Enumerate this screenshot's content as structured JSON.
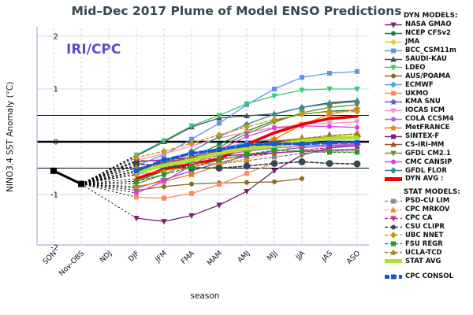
{
  "title": "Mid–Dec 2017 Plume of Model ENSO Predictions",
  "watermark": "IRI/CPC",
  "axes": {
    "y_label": "NINO3.4 SST Anomaly (°C)",
    "x_label": "season",
    "y_ticks": [
      "2",
      "1",
      "0",
      "-1",
      "-2"
    ],
    "y_tick_values": [
      2,
      1,
      0,
      -1,
      -2
    ]
  },
  "legend": {
    "dyn_header": "DYN MODELS:",
    "stat_header": "STAT MODELS:"
  },
  "colors": {
    "title_text": "#37474f",
    "watermark_text": "#5a51c8",
    "frame": "#a9b2d8",
    "gridline": "#d9d9d9",
    "season_gridline": "#cfcfcf",
    "reference_line": "#000000",
    "observation": "#000000"
  },
  "chart_data": {
    "type": "line",
    "title": "Mid–Dec 2017 Plume of Model ENSO Predictions",
    "xlabel": "season",
    "ylabel": "NINO3.4 SST Anomaly (°C)",
    "ylim": [
      -2,
      2
    ],
    "x_categories": [
      "SON",
      "Nov-OBS",
      "NDJ",
      "DJF",
      "JFM",
      "FMA",
      "MAM",
      "AMJ",
      "MJJ",
      "JJA",
      "JAS",
      "ASO"
    ],
    "reference_lines": [
      0.5,
      0,
      -0.5
    ],
    "light_gridline_values": [
      2,
      1,
      -1
    ],
    "observed": {
      "name": "OBS",
      "x": [
        "SON",
        "Nov-OBS"
      ],
      "values": [
        -0.55,
        -0.8
      ]
    },
    "forecast_start_category": "DJF",
    "series": [
      {
        "name": "NASA GMAO",
        "group": "dyn",
        "color": "#77226f",
        "marker": "tri-down",
        "line": "solid",
        "thick": false,
        "values": [
          -1.45,
          -1.51,
          -1.4,
          -1.2,
          -0.94,
          -0.55,
          -0.25,
          -0.12,
          -0.07
        ]
      },
      {
        "name": "NCEP CFSv2",
        "group": "dyn",
        "color": "#1d7a4a",
        "marker": "circle",
        "line": "solid",
        "thick": false,
        "values": [
          -0.75,
          -0.55,
          -0.3,
          -0.05,
          0.2,
          0.4,
          0.52,
          0.58,
          0.6
        ]
      },
      {
        "name": "JMA",
        "group": "dyn",
        "color": "#f0c930",
        "marker": "diamond",
        "line": "solid",
        "thick": false,
        "values": [
          -0.55,
          -0.45,
          -0.32,
          -0.18,
          -0.08,
          -0.02,
          0.04,
          null,
          null
        ]
      },
      {
        "name": "BCC_CSM11m",
        "group": "dyn",
        "color": "#5f93ea",
        "marker": "square",
        "line": "solid",
        "thick": false,
        "values": [
          -0.45,
          -0.25,
          0.05,
          0.35,
          0.7,
          1.0,
          1.22,
          1.3,
          1.33
        ]
      },
      {
        "name": "SAUDI-KAU",
        "group": "dyn",
        "color": "#3f4e57",
        "marker": "tri-up",
        "line": "solid",
        "thick": false,
        "values": [
          -0.27,
          0.0,
          0.28,
          0.45,
          0.49,
          0.53,
          0.65,
          0.74,
          0.78
        ]
      },
      {
        "name": "LDEO",
        "group": "dyn",
        "color": "#37c978",
        "marker": "tri-down",
        "line": "solid",
        "thick": false,
        "values": [
          -0.25,
          0.02,
          0.3,
          0.5,
          0.72,
          0.87,
          0.98,
          1.0,
          1.0
        ]
      },
      {
        "name": "AUS/POAMA",
        "group": "dyn",
        "color": "#8a6d1e",
        "marker": "circle",
        "line": "solid",
        "thick": false,
        "values": [
          -0.92,
          -0.85,
          -0.8,
          -0.78,
          -0.77,
          -0.76,
          -0.7,
          null,
          null
        ]
      },
      {
        "name": "ECMWF",
        "group": "dyn",
        "color": "#4da6e8",
        "marker": "diamond",
        "line": "solid",
        "thick": false,
        "values": [
          -0.62,
          -0.45,
          -0.28,
          -0.12,
          -0.02,
          0.05,
          null,
          null,
          null
        ]
      },
      {
        "name": "UKMO",
        "group": "dyn",
        "color": "#fd8a5e",
        "marker": "square",
        "line": "solid",
        "thick": false,
        "values": [
          -1.05,
          -1.07,
          -0.98,
          -0.81,
          -0.6,
          -0.4,
          null,
          null,
          null
        ]
      },
      {
        "name": "KMA SNU",
        "group": "dyn",
        "color": "#6a5acd",
        "marker": "star",
        "line": "solid",
        "thick": false,
        "values": [
          -0.88,
          -0.72,
          -0.55,
          -0.4,
          -0.27,
          -0.17,
          -0.11,
          -0.08,
          -0.07
        ]
      },
      {
        "name": "IOCAS ICM",
        "group": "dyn",
        "color": "#f791c0",
        "marker": "tri-down",
        "line": "solid",
        "thick": false,
        "values": [
          -0.35,
          -0.23,
          -0.08,
          0.07,
          0.18,
          0.27,
          0.33,
          0.35,
          0.38
        ]
      },
      {
        "name": "COLA CCSM4",
        "group": "dyn",
        "color": "#a864d8",
        "marker": "circle",
        "line": "solid",
        "thick": false,
        "values": [
          -0.55,
          -0.45,
          -0.35,
          -0.26,
          -0.18,
          -0.12,
          -0.08,
          -0.06,
          -0.05
        ]
      },
      {
        "name": "MetFRANCE",
        "group": "dyn",
        "color": "#ef7d11",
        "marker": "star",
        "line": "solid",
        "thick": false,
        "values": [
          -0.85,
          -0.75,
          -0.62,
          -0.45,
          -0.22,
          0.05,
          0.32,
          0.52,
          0.62
        ]
      },
      {
        "name": "SINTEX-F",
        "group": "dyn",
        "color": "#8c1a86",
        "marker": "square",
        "line": "solid",
        "thick": false,
        "values": [
          -0.38,
          -0.34,
          -0.3,
          -0.27,
          -0.24,
          -0.21,
          -0.18,
          -0.16,
          -0.14
        ]
      },
      {
        "name": "CS-IRI-MM",
        "group": "dyn",
        "color": "#a0522d",
        "marker": "tri-up",
        "line": "solid",
        "thick": false,
        "values": [
          -0.5,
          -0.4,
          -0.29,
          -0.17,
          -0.07,
          0.01,
          0.06,
          0.09,
          0.1
        ]
      },
      {
        "name": "GFDL CM2.1",
        "group": "dyn",
        "color": "#6c8f2d",
        "marker": "tri-down",
        "line": "solid",
        "thick": false,
        "values": [
          -0.8,
          -0.62,
          -0.38,
          -0.1,
          0.15,
          0.37,
          0.55,
          0.65,
          0.7
        ]
      },
      {
        "name": "CMC CANSIP",
        "group": "dyn",
        "color": "#e23ae2",
        "marker": "circle",
        "line": "solid",
        "thick": false,
        "values": [
          -0.97,
          -0.75,
          -0.45,
          -0.15,
          0.1,
          0.26,
          0.3,
          0.29,
          0.27
        ]
      },
      {
        "name": "GFDL FLOR",
        "group": "dyn",
        "color": "#338a99",
        "marker": "diamond",
        "line": "solid",
        "thick": false,
        "values": [
          -0.62,
          -0.42,
          -0.18,
          0.1,
          0.33,
          0.52,
          0.65,
          0.72,
          0.76
        ]
      },
      {
        "name": "DYN AVG :",
        "group": "dyn",
        "color": "#ee0000",
        "marker": "none",
        "line": "solid",
        "thick": true,
        "values": [
          -0.7,
          -0.52,
          -0.42,
          -0.33,
          -0.05,
          0.17,
          0.33,
          0.44,
          0.48
        ]
      },
      {
        "name": "PSD-CU LIM",
        "group": "stat",
        "color": "#8a8a8a",
        "marker": "square",
        "line": "dashed",
        "thick": false,
        "values": [
          -0.35,
          -0.37,
          -0.4,
          -0.42,
          -0.36,
          -0.29,
          -0.22,
          -0.18,
          -0.17
        ]
      },
      {
        "name": "CPC MRKOV",
        "group": "stat",
        "color": "#ef8c1a",
        "marker": "tri-up",
        "line": "dotted",
        "thick": false,
        "values": [
          -0.62,
          -0.55,
          -0.48,
          -0.4,
          -0.33,
          -0.2,
          -0.05,
          0.1,
          0.15
        ]
      },
      {
        "name": "CPC CA",
        "group": "stat",
        "color": "#cc2a8a",
        "marker": "tri-down",
        "line": "dashed",
        "thick": false,
        "values": [
          -0.37,
          -0.36,
          -0.34,
          -0.31,
          -0.27,
          -0.22,
          -0.16,
          -0.11,
          -0.08
        ]
      },
      {
        "name": "CSU CLIPR",
        "group": "stat",
        "color": "#37474f",
        "marker": "circle",
        "line": "dashed",
        "thick": false,
        "values": [
          -0.42,
          -0.46,
          -0.49,
          -0.5,
          -0.46,
          -0.41,
          -0.38,
          -0.41,
          -0.42
        ]
      },
      {
        "name": "UBC NNET",
        "group": "stat",
        "color": "#c9980e",
        "marker": "diamond",
        "line": "dashed",
        "thick": false,
        "values": [
          -0.3,
          -0.18,
          -0.03,
          0.13,
          0.28,
          0.42,
          0.52,
          0.57,
          0.57
        ]
      },
      {
        "name": "FSU REGR",
        "group": "stat",
        "color": "#1f9e1f",
        "marker": "square",
        "line": "dashed",
        "thick": false,
        "values": [
          -0.75,
          -0.62,
          -0.48,
          -0.35,
          -0.24,
          -0.16,
          -0.18,
          -0.2,
          -0.2
        ]
      },
      {
        "name": "UCLA-TCD",
        "group": "stat",
        "color": "#9c861a",
        "marker": "tri-up",
        "line": "dashed",
        "thick": false,
        "values": [
          -0.5,
          -0.42,
          -0.32,
          -0.22,
          -0.12,
          -0.02,
          0.06,
          0.12,
          0.15
        ]
      },
      {
        "name": "STAT AVG",
        "group": "stat",
        "color": "#b2e135",
        "marker": "none",
        "line": "solid",
        "thick": true,
        "values": [
          -0.58,
          -0.45,
          -0.35,
          -0.22,
          -0.13,
          -0.08,
          0.02,
          0.06,
          0.08
        ]
      },
      {
        "name": "CPC CONSOL",
        "group": "consol",
        "color": "#1558d6",
        "marker": "square",
        "line": "dashed",
        "thick": true,
        "values": [
          -0.55,
          -0.35,
          -0.22,
          -0.15,
          -0.06,
          -0.04,
          -0.04,
          -0.02,
          -0.01
        ]
      }
    ]
  }
}
